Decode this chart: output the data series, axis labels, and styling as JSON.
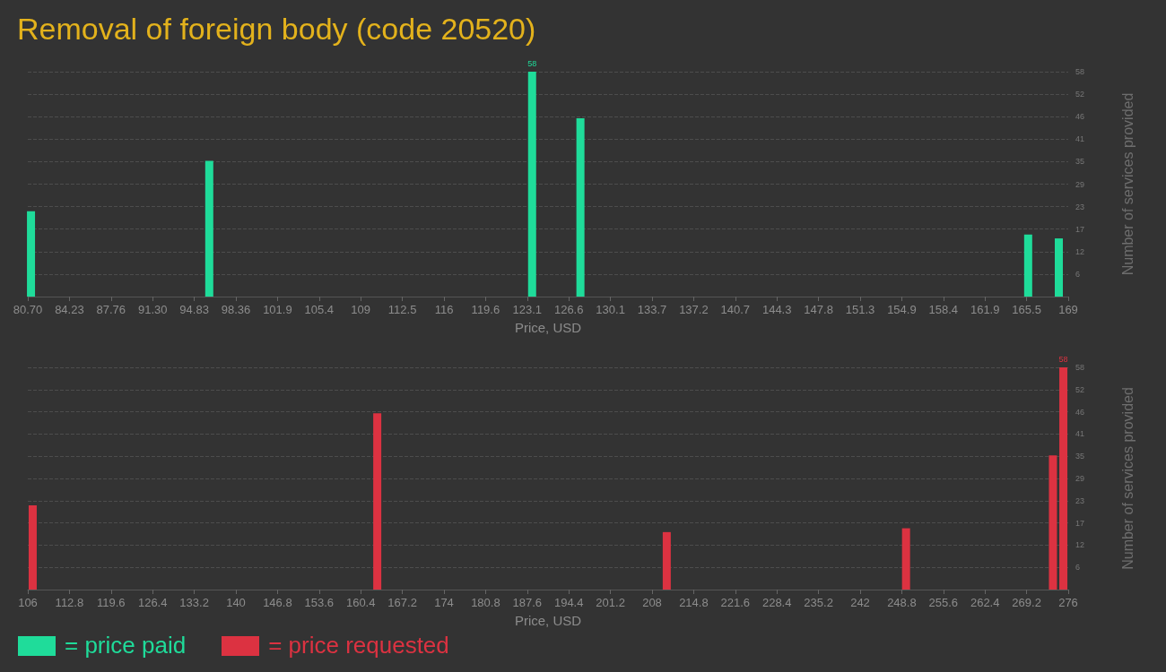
{
  "chart_data": [
    {
      "type": "bar",
      "title": "Removal of foreign body (code 20520)",
      "xlabel": "Price, USD",
      "ylabel": "Number of services provided",
      "x": [
        80.97,
        96.1,
        123.5,
        127.6,
        165.6,
        168.2
      ],
      "series": [
        {
          "name": "= price paid",
          "color": "#1fdc9a",
          "values": [
            22,
            35,
            58,
            46,
            16,
            15
          ],
          "value_labels": [
            null,
            null,
            "58",
            null,
            null,
            null
          ]
        }
      ],
      "xlim": [
        80.7,
        169
      ],
      "xticks": [
        {
          "value": 80.7,
          "label": "80.70"
        },
        {
          "value": 84.232,
          "label": "84.23"
        },
        {
          "value": 87.764,
          "label": "87.76"
        },
        {
          "value": 91.296,
          "label": "91.30"
        },
        {
          "value": 94.828,
          "label": "94.83"
        },
        {
          "value": 98.36,
          "label": "98.36"
        },
        {
          "value": 101.892,
          "label": "101.9"
        },
        {
          "value": 105.424,
          "label": "105.4"
        },
        {
          "value": 108.956,
          "label": "109"
        },
        {
          "value": 112.488,
          "label": "112.5"
        },
        {
          "value": 116.02,
          "label": "116"
        },
        {
          "value": 119.552,
          "label": "119.6"
        },
        {
          "value": 123.084,
          "label": "123.1"
        },
        {
          "value": 126.616,
          "label": "126.6"
        },
        {
          "value": 130.148,
          "label": "130.1"
        },
        {
          "value": 133.68,
          "label": "133.7"
        },
        {
          "value": 137.212,
          "label": "137.2"
        },
        {
          "value": 140.744,
          "label": "140.7"
        },
        {
          "value": 144.276,
          "label": "144.3"
        },
        {
          "value": 147.808,
          "label": "147.8"
        },
        {
          "value": 151.34,
          "label": "151.3"
        },
        {
          "value": 154.872,
          "label": "154.9"
        },
        {
          "value": 158.404,
          "label": "158.4"
        },
        {
          "value": 161.936,
          "label": "161.9"
        },
        {
          "value": 165.468,
          "label": "165.5"
        },
        169
      ],
      "ylim": [
        0,
        58
      ],
      "yticks": [
        {
          "value": 5.8,
          "label": "6"
        },
        {
          "value": 11.6,
          "label": "12"
        },
        {
          "value": 17.4,
          "label": "17"
        },
        {
          "value": 23.2,
          "label": "23"
        },
        {
          "value": 29,
          "label": "29"
        },
        {
          "value": 34.8,
          "label": "35"
        },
        {
          "value": 40.6,
          "label": "41"
        },
        {
          "value": 46.4,
          "label": "46"
        },
        {
          "value": 52.2,
          "label": "52"
        },
        58
      ],
      "grid": "y",
      "legend": "bottom left"
    },
    {
      "type": "bar",
      "xlabel": "Price, USD",
      "ylabel": "Number of services provided",
      "x": [
        106.8,
        163.1,
        210.4,
        249.5,
        273.5,
        275.2
      ],
      "series": [
        {
          "name": "= price requested",
          "color": "#dc3241",
          "values": [
            22,
            46,
            15,
            16,
            35,
            58
          ],
          "value_labels": [
            null,
            null,
            null,
            null,
            null,
            "58"
          ]
        }
      ],
      "xlim": [
        106,
        276
      ],
      "xticks": [
        106,
        112.8,
        119.6,
        126.4,
        133.2,
        140,
        146.8,
        153.6,
        160.4,
        167.2,
        174,
        180.8,
        187.6,
        194.4,
        201.2,
        208,
        214.8,
        221.6,
        228.4,
        235.2,
        242,
        248.8,
        255.6,
        262.4,
        269.2,
        276
      ],
      "ylim": [
        0,
        58
      ],
      "yticks": [
        {
          "value": 5.8,
          "label": "6"
        },
        {
          "value": 11.6,
          "label": "12"
        },
        {
          "value": 17.4,
          "label": "17"
        },
        {
          "value": 23.2,
          "label": "23"
        },
        {
          "value": 29,
          "label": "29"
        },
        {
          "value": 34.8,
          "label": "35"
        },
        {
          "value": 40.6,
          "label": "41"
        },
        {
          "value": 46.4,
          "label": "46"
        },
        {
          "value": 52.2,
          "label": "52"
        },
        58
      ],
      "grid": "y",
      "legend": "bottom left"
    }
  ]
}
